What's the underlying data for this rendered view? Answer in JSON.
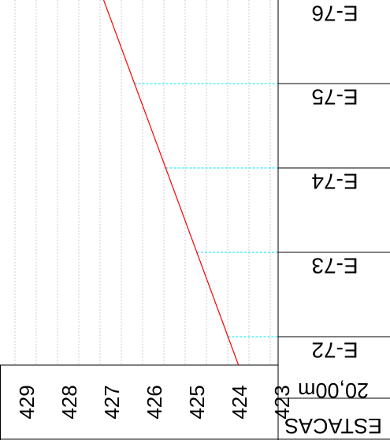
{
  "chart_data": {
    "type": "line",
    "title": "",
    "xlabel": "",
    "ylabel": "",
    "elevation_ticks": [
      "429",
      "428",
      "427",
      "426",
      "425",
      "424",
      "423"
    ],
    "station_labels": [
      "E-76",
      "E-75",
      "E-74",
      "E-73",
      "E-72"
    ],
    "scale_label": "20,00m",
    "header_label": "ESTACAS",
    "series": [
      {
        "x": [
          "E-72",
          "E-73",
          "E-74",
          "E-75"
        ],
        "values": [
          424.27,
          425.0,
          425.73,
          426.47
        ],
        "color": "#ff0000"
      }
    ],
    "colors": {
      "profile": "#ff0000",
      "station_line": "#00e5ff",
      "grid": "#cccccc"
    }
  }
}
